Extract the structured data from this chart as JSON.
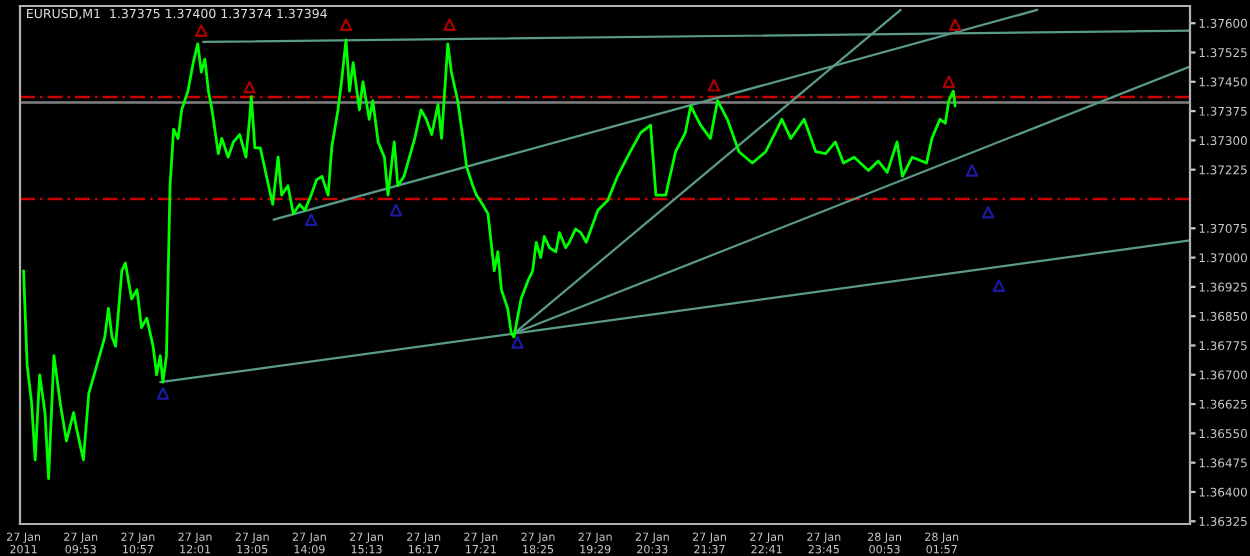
{
  "chart_data": {
    "type": "line",
    "title": "EURUSD,M1  1.37375 1.37400 1.37374 1.37394",
    "xlim": [
      "2011-01-27T08:45",
      "2011-01-28T06:35"
    ],
    "ylim": [
      1.36318,
      1.37644
    ],
    "xticks": [
      {
        "value": "2011-01-27T08:49",
        "label": "27 Jan 2011"
      },
      {
        "value": "2011-01-27T09:53",
        "label": "27 Jan 09:53"
      },
      {
        "value": "2011-01-27T10:57",
        "label": "27 Jan 10:57"
      },
      {
        "value": "2011-01-27T12:01",
        "label": "27 Jan 12:01"
      },
      {
        "value": "2011-01-27T13:05",
        "label": "27 Jan 13:05"
      },
      {
        "value": "2011-01-27T14:09",
        "label": "27 Jan 14:09"
      },
      {
        "value": "2011-01-27T15:13",
        "label": "27 Jan 15:13"
      },
      {
        "value": "2011-01-27T16:17",
        "label": "27 Jan 16:17"
      },
      {
        "value": "2011-01-27T17:21",
        "label": "27 Jan 17:21"
      },
      {
        "value": "2011-01-27T18:25",
        "label": "27 Jan 18:25"
      },
      {
        "value": "2011-01-27T19:29",
        "label": "27 Jan 19:29"
      },
      {
        "value": "2011-01-27T20:33",
        "label": "27 Jan 20:33"
      },
      {
        "value": "2011-01-27T21:37",
        "label": "27 Jan 21:37"
      },
      {
        "value": "2011-01-27T22:41",
        "label": "27 Jan 22:41"
      },
      {
        "value": "2011-01-27T23:45",
        "label": "27 Jan 23:45"
      },
      {
        "value": "2011-01-28T00:53",
        "label": "28 Jan 00:53"
      },
      {
        "value": "2011-01-28T01:57",
        "label": "28 Jan 01:57"
      }
    ],
    "yticks": [
      {
        "value": 1.376,
        "label": "1.37600"
      },
      {
        "value": 1.37525,
        "label": "1.37525"
      },
      {
        "value": 1.3745,
        "label": "1.37450"
      },
      {
        "value": 1.37375,
        "label": "1.37375"
      },
      {
        "value": 1.373,
        "label": "1.37300"
      },
      {
        "value": 1.37225,
        "label": "1.37225"
      },
      {
        "value": 1.37075,
        "label": "1.37075"
      },
      {
        "value": 1.37,
        "label": "1.37000"
      },
      {
        "value": 1.36925,
        "label": "1.36925"
      },
      {
        "value": 1.3685,
        "label": "1.36850"
      },
      {
        "value": 1.36775,
        "label": "1.36775"
      },
      {
        "value": 1.367,
        "label": "1.36700"
      },
      {
        "value": 1.36625,
        "label": "1.36625"
      },
      {
        "value": 1.3655,
        "label": "1.36550"
      },
      {
        "value": 1.36475,
        "label": "1.36475"
      },
      {
        "value": 1.364,
        "label": "1.36400"
      },
      {
        "value": 1.36325,
        "label": "1.36325"
      }
    ],
    "grid": false,
    "legend": false,
    "ref_lines": [
      {
        "axis": "y",
        "value": 1.37411,
        "color": "#cc0000",
        "line_style": "dashed"
      },
      {
        "axis": "y",
        "value": 1.3715,
        "color": "#cc0000",
        "line_style": "dashed"
      },
      {
        "axis": "y",
        "value": 1.37397,
        "color": "#808080",
        "line_style": "solid"
      }
    ],
    "series": [
      {
        "color": "#00ff00",
        "x": [
          "2011-01-27T08:49",
          "2011-01-27T08:53",
          "2011-01-27T08:58",
          "2011-01-27T09:02",
          "2011-01-27T09:07",
          "2011-01-27T09:13",
          "2011-01-27T09:17",
          "2011-01-27T09:23",
          "2011-01-27T09:30",
          "2011-01-27T09:37",
          "2011-01-27T09:45",
          "2011-01-27T09:49",
          "2011-01-27T09:56",
          "2011-01-27T10:02",
          "2011-01-27T10:11",
          "2011-01-27T10:20",
          "2011-01-27T10:24",
          "2011-01-27T10:28",
          "2011-01-27T10:32",
          "2011-01-27T10:39",
          "2011-01-27T10:43",
          "2011-01-27T10:50",
          "2011-01-27T10:56",
          "2011-01-27T11:01",
          "2011-01-27T11:07",
          "2011-01-27T11:14",
          "2011-01-27T11:18",
          "2011-01-27T11:22",
          "2011-01-27T11:25",
          "2011-01-27T11:29",
          "2011-01-27T11:31",
          "2011-01-27T11:33",
          "2011-01-27T11:37",
          "2011-01-27T11:42",
          "2011-01-27T11:46",
          "2011-01-27T11:53",
          "2011-01-27T11:59",
          "2011-01-27T12:04",
          "2011-01-27T12:08",
          "2011-01-27T12:12",
          "2011-01-27T12:16",
          "2011-01-27T12:20",
          "2011-01-27T12:27",
          "2011-01-27T12:31",
          "2011-01-27T12:38",
          "2011-01-27T12:44",
          "2011-01-27T12:51",
          "2011-01-27T12:58",
          "2011-01-27T13:02",
          "2011-01-27T13:04",
          "2011-01-27T13:08",
          "2011-01-27T13:14",
          "2011-01-27T13:21",
          "2011-01-27T13:28",
          "2011-01-27T13:34",
          "2011-01-27T13:38",
          "2011-01-27T13:45",
          "2011-01-27T13:51",
          "2011-01-27T13:58",
          "2011-01-27T14:04",
          "2011-01-27T14:11",
          "2011-01-27T14:17",
          "2011-01-27T14:23",
          "2011-01-27T14:30",
          "2011-01-27T14:34",
          "2011-01-27T14:41",
          "2011-01-27T14:45",
          "2011-01-27T14:50",
          "2011-01-27T14:54",
          "2011-01-27T14:58",
          "2011-01-27T15:05",
          "2011-01-27T15:09",
          "2011-01-27T15:16",
          "2011-01-27T15:20",
          "2011-01-27T15:26",
          "2011-01-27T15:33",
          "2011-01-27T15:37",
          "2011-01-27T15:44",
          "2011-01-27T15:48",
          "2011-01-27T15:55",
          "2011-01-27T16:01",
          "2011-01-27T16:07",
          "2011-01-27T16:14",
          "2011-01-27T16:20",
          "2011-01-27T16:26",
          "2011-01-27T16:33",
          "2011-01-27T16:37",
          "2011-01-27T16:44",
          "2011-01-27T16:48",
          "2011-01-27T16:55",
          "2011-01-27T17:01",
          "2011-01-27T17:05",
          "2011-01-27T17:12",
          "2011-01-27T17:16",
          "2011-01-27T17:23",
          "2011-01-27T17:29",
          "2011-01-27T17:36",
          "2011-01-27T17:40",
          "2011-01-27T17:44",
          "2011-01-27T17:51",
          "2011-01-27T17:55",
          "2011-01-27T17:58",
          "2011-01-27T18:02",
          "2011-01-27T18:06",
          "2011-01-27T18:10",
          "2011-01-27T18:14",
          "2011-01-27T18:19",
          "2011-01-27T18:23",
          "2011-01-27T18:28",
          "2011-01-27T18:32",
          "2011-01-27T18:38",
          "2011-01-27T18:45",
          "2011-01-27T18:49",
          "2011-01-27T18:56",
          "2011-01-27T19:00",
          "2011-01-27T19:07",
          "2011-01-27T19:13",
          "2011-01-27T19:19",
          "2011-01-27T19:32",
          "2011-01-27T19:43",
          "2011-01-27T19:54",
          "2011-01-27T20:05",
          "2011-01-27T20:20",
          "2011-01-27T20:31",
          "2011-01-27T20:37",
          "2011-01-27T20:48",
          "2011-01-27T20:59",
          "2011-01-27T21:10",
          "2011-01-27T21:16",
          "2011-01-27T21:27",
          "2011-01-27T21:38",
          "2011-01-27T21:46",
          "2011-01-27T21:57",
          "2011-01-27T22:10",
          "2011-01-27T22:25",
          "2011-01-27T22:40",
          "2011-01-27T22:58",
          "2011-01-27T23:08",
          "2011-01-27T23:23",
          "2011-01-27T23:36",
          "2011-01-27T23:47",
          "2011-01-27T23:58",
          "2011-01-28T00:07",
          "2011-01-28T00:19",
          "2011-01-28T00:35",
          "2011-01-28T00:46",
          "2011-01-28T00:56",
          "2011-01-28T01:07",
          "2011-01-28T01:13",
          "2011-01-28T01:24",
          "2011-01-28T01:40",
          "2011-01-28T01:46",
          "2011-01-28T01:55",
          "2011-01-28T02:01",
          "2011-01-28T02:05",
          "2011-01-28T02:10",
          "2011-01-28T02:12"
        ],
        "values": [
          1.36966,
          1.36724,
          1.36628,
          1.36482,
          1.367,
          1.36603,
          1.36434,
          1.36749,
          1.36628,
          1.36531,
          1.36603,
          1.36555,
          1.36482,
          1.36652,
          1.36724,
          1.36797,
          1.3687,
          1.36797,
          1.36773,
          1.36966,
          1.36986,
          1.36894,
          1.36918,
          1.36821,
          1.36845,
          1.36773,
          1.367,
          1.36749,
          1.36681,
          1.36749,
          1.36966,
          1.37184,
          1.37329,
          1.37305,
          1.37378,
          1.37426,
          1.37499,
          1.37547,
          1.37475,
          1.37508,
          1.37426,
          1.37378,
          1.37266,
          1.37305,
          1.37257,
          1.37296,
          1.37315,
          1.37257,
          1.37354,
          1.37412,
          1.37281,
          1.37281,
          1.37208,
          1.37136,
          1.37257,
          1.3716,
          1.37184,
          1.37112,
          1.37136,
          1.37121,
          1.3716,
          1.37199,
          1.37208,
          1.3716,
          1.37281,
          1.37378,
          1.3745,
          1.37557,
          1.37426,
          1.37499,
          1.37378,
          1.3745,
          1.37354,
          1.37402,
          1.37296,
          1.37257,
          1.3716,
          1.37296,
          1.37184,
          1.37208,
          1.37257,
          1.37305,
          1.37378,
          1.37354,
          1.37315,
          1.37392,
          1.37305,
          1.37547,
          1.37475,
          1.37402,
          1.37305,
          1.37233,
          1.37184,
          1.3716,
          1.37136,
          1.37112,
          1.36966,
          1.37015,
          1.36918,
          1.3687,
          1.36807,
          1.36797,
          1.36845,
          1.36894,
          1.36918,
          1.36942,
          1.36966,
          1.37039,
          1.37,
          1.37054,
          1.37025,
          1.37015,
          1.37064,
          1.37025,
          1.37039,
          1.37073,
          1.37064,
          1.37039,
          1.37121,
          1.37146,
          1.37208,
          1.37257,
          1.3732,
          1.37339,
          1.3716,
          1.3716,
          1.37271,
          1.3732,
          1.37388,
          1.37339,
          1.37305,
          1.37402,
          1.37354,
          1.37271,
          1.37242,
          1.37271,
          1.37354,
          1.37305,
          1.37354,
          1.37271,
          1.37266,
          1.37296,
          1.37242,
          1.37257,
          1.37223,
          1.37247,
          1.37218,
          1.37296,
          1.37208,
          1.37257,
          1.37242,
          1.37305,
          1.37354,
          1.37344,
          1.37402,
          1.37426,
          1.37388
        ]
      },
      {
        "type": "line",
        "color": "#5a9a8a",
        "x": [
          "2011-01-27T12:10",
          "2011-01-28T06:35"
        ],
        "values": [
          1.37552,
          1.37581
        ]
      },
      {
        "type": "line",
        "color": "#5a9a8a",
        "x": [
          "2011-01-27T11:22",
          "2011-01-28T06:35"
        ],
        "values": [
          1.36681,
          1.37044
        ]
      },
      {
        "type": "line",
        "color": "#5a9a8a",
        "x": [
          "2011-01-27T17:59",
          "2011-01-28T01:11"
        ],
        "values": [
          1.36807,
          1.37634
        ]
      },
      {
        "type": "line",
        "color": "#5a9a8a",
        "x": [
          "2011-01-27T17:59",
          "2011-01-28T06:35"
        ],
        "values": [
          1.36807,
          1.37489
        ]
      },
      {
        "type": "line",
        "color": "#5a9a8a",
        "x": [
          "2011-01-27T13:29",
          "2011-01-28T03:44"
        ],
        "values": [
          1.37097,
          1.37634
        ]
      },
      {
        "type": "scatter",
        "color": "#aa0000",
        "marker": "triangle",
        "x": [
          "2011-01-27T12:08",
          "2011-01-27T13:02",
          "2011-01-27T14:50",
          "2011-01-27T16:46",
          "2011-01-27T21:42",
          "2011-01-28T02:05",
          "2011-01-28T02:12"
        ],
        "values": [
          1.37581,
          1.37436,
          1.37596,
          1.37596,
          1.37441,
          1.3745,
          1.37596
        ]
      },
      {
        "type": "scatter",
        "color": "#1a1aa0",
        "marker": "triangle",
        "x": [
          "2011-01-27T11:25",
          "2011-01-27T14:11",
          "2011-01-27T15:46",
          "2011-01-27T18:02",
          "2011-01-28T02:31",
          "2011-01-28T02:49",
          "2011-01-28T03:01"
        ],
        "values": [
          1.36652,
          1.37097,
          1.37121,
          1.36783,
          1.37223,
          1.37116,
          1.36928
        ]
      }
    ]
  }
}
